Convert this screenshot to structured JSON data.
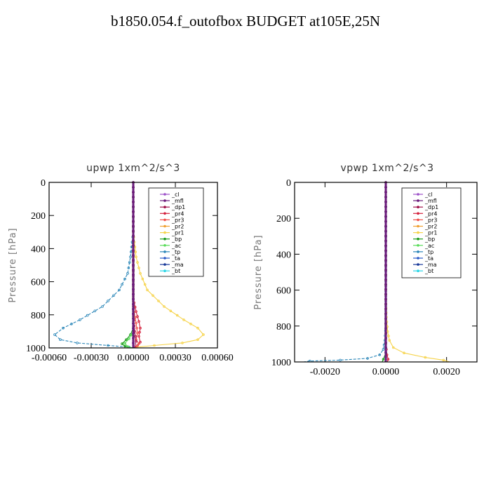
{
  "page": {
    "title": "b1850.054.f_outofbox  BUDGET at105E,25N"
  },
  "legend_items": [
    {
      "label": "_cl",
      "color": "#9c4fc9"
    },
    {
      "label": "_mfl",
      "color": "#6a1a7a"
    },
    {
      "label": "_dp1",
      "color": "#a0104a"
    },
    {
      "label": "_pr4",
      "color": "#d41f3c"
    },
    {
      "label": "_pr3",
      "color": "#f0504a"
    },
    {
      "label": "_pr2",
      "color": "#f0a030"
    },
    {
      "label": "_pr1",
      "color": "#f6d34a"
    },
    {
      "label": "_bp",
      "color": "#1a9a1a"
    },
    {
      "label": "_ac",
      "color": "#5adc5a"
    },
    {
      "label": "_tp",
      "color": "#2a86b8"
    },
    {
      "label": "_ta",
      "color": "#2a5ac8"
    },
    {
      "label": "_ma",
      "color": "#1a3a9a"
    },
    {
      "label": "_bt",
      "color": "#2ad6e6"
    }
  ],
  "chart_data": [
    {
      "type": "line",
      "title": "upwp   1xm^2/s^3",
      "ylabel": "Pressure [hPa]",
      "xlabel": "",
      "xlim": [
        -0.0006,
        0.0006
      ],
      "ylim": [
        1000,
        0
      ],
      "x_ticks": [
        -0.0006,
        -0.0003,
        0.0,
        0.0003,
        0.0006
      ],
      "x_tick_labels": [
        "-0.00060",
        "-0.00030",
        "0.00000",
        "0.00030",
        "0.00060"
      ],
      "y_ticks": [
        0,
        200,
        400,
        600,
        800,
        1000
      ],
      "y_tick_labels": [
        "0",
        "200",
        "400",
        "600",
        "800",
        "1000"
      ],
      "legend_position": "top-right",
      "series": [
        {
          "name": "_tp",
          "color": "#2a86b8",
          "points": [
            [
              0.0,
              0
            ],
            [
              0.0,
              300
            ],
            [
              -2e-05,
              450
            ],
            [
              -4e-05,
              550
            ],
            [
              -0.0001,
              650
            ],
            [
              -0.00022,
              750
            ],
            [
              -0.00038,
              830
            ],
            [
              -0.0005,
              880
            ],
            [
              -0.00056,
              920
            ],
            [
              -0.00052,
              950
            ],
            [
              -0.0004,
              970
            ],
            [
              -0.00018,
              985
            ],
            [
              -3e-05,
              995
            ],
            [
              0.0,
              1000
            ]
          ]
        },
        {
          "name": "_pr1",
          "color": "#f6d34a",
          "points": [
            [
              0.0,
              0
            ],
            [
              0.0,
              300
            ],
            [
              2e-05,
              450
            ],
            [
              5e-05,
              550
            ],
            [
              0.0001,
              650
            ],
            [
              0.00022,
              750
            ],
            [
              0.00036,
              830
            ],
            [
              0.00046,
              880
            ],
            [
              0.0005,
              920
            ],
            [
              0.00046,
              950
            ],
            [
              0.00035,
              970
            ],
            [
              0.00015,
              985
            ],
            [
              3e-05,
              995
            ],
            [
              0.0,
              1000
            ]
          ]
        },
        {
          "name": "_pr4",
          "color": "#d41f3c",
          "points": [
            [
              0.0,
              0
            ],
            [
              0.0,
              700
            ],
            [
              2e-05,
              780
            ],
            [
              4e-05,
              840
            ],
            [
              5e-05,
              880
            ],
            [
              4e-05,
              930
            ],
            [
              5e-05,
              965
            ],
            [
              3e-05,
              985
            ],
            [
              1e-05,
              1000
            ]
          ]
        },
        {
          "name": "_pr3",
          "color": "#f0504a",
          "points": [
            [
              0.0,
              0
            ],
            [
              0.0,
              750
            ],
            [
              2e-05,
              850
            ],
            [
              3e-05,
              910
            ],
            [
              2e-05,
              950
            ],
            [
              4e-05,
              975
            ],
            [
              2e-05,
              995
            ],
            [
              0.0,
              1000
            ]
          ]
        },
        {
          "name": "_bp",
          "color": "#1a9a1a",
          "points": [
            [
              0.0,
              0
            ],
            [
              0.0,
              880
            ],
            [
              -2e-05,
              920
            ],
            [
              -5e-05,
              950
            ],
            [
              -8e-05,
              975
            ],
            [
              -6e-05,
              990
            ],
            [
              -2e-05,
              1000
            ]
          ]
        },
        {
          "name": "_ac",
          "color": "#5adc5a",
          "points": [
            [
              0.0,
              0
            ],
            [
              0.0,
              900
            ],
            [
              -3e-05,
              945
            ],
            [
              -6e-05,
              972
            ],
            [
              -4e-05,
              992
            ],
            [
              0.0,
              1000
            ]
          ]
        },
        {
          "name": "_dp1",
          "color": "#a0104a",
          "points": [
            [
              0.0,
              0
            ],
            [
              0.0,
              800
            ],
            [
              1e-05,
              900
            ],
            [
              2e-05,
              960
            ],
            [
              1e-05,
              1000
            ]
          ]
        },
        {
          "name": "_cl",
          "color": "#9c4fc9",
          "points": [
            [
              0.0,
              0
            ],
            [
              0.0,
              1000
            ]
          ]
        },
        {
          "name": "_mfl",
          "color": "#6a1a7a",
          "points": [
            [
              0.0,
              0
            ],
            [
              0.0,
              1000
            ]
          ]
        }
      ]
    },
    {
      "type": "line",
      "title": "vpwp   1xm^2/s^3",
      "ylabel": "Pressure [hPa]",
      "xlabel": "",
      "xlim": [
        -0.003,
        0.003
      ],
      "ylim": [
        1000,
        0
      ],
      "x_ticks": [
        -0.002,
        0.0,
        0.002
      ],
      "x_tick_labels": [
        "-0.0020",
        "0.0000",
        "0.0020"
      ],
      "y_ticks": [
        0,
        200,
        400,
        600,
        800,
        1000
      ],
      "y_tick_labels": [
        "0",
        "200",
        "400",
        "600",
        "800",
        "1000"
      ],
      "legend_position": "top-right",
      "series": [
        {
          "name": "_tp",
          "color": "#2a86b8",
          "points": [
            [
              0.0,
              0
            ],
            [
              0.0,
              800
            ],
            [
              -3e-05,
              880
            ],
            [
              -8e-05,
              930
            ],
            [
              -0.0002,
              960
            ],
            [
              -0.0006,
              980
            ],
            [
              -0.0015,
              990
            ],
            [
              -0.0025,
              995
            ],
            [
              -0.0027,
              1000
            ]
          ]
        },
        {
          "name": "_pr1",
          "color": "#f6d34a",
          "points": [
            [
              0.0,
              0
            ],
            [
              0.0,
              650
            ],
            [
              2e-05,
              750
            ],
            [
              6e-05,
              830
            ],
            [
              0.00012,
              880
            ],
            [
              0.00025,
              920
            ],
            [
              0.0006,
              950
            ],
            [
              0.0013,
              975
            ],
            [
              0.0019,
              990
            ],
            [
              0.0021,
              1000
            ]
          ]
        },
        {
          "name": "_pr4",
          "color": "#d41f3c",
          "points": [
            [
              0.0,
              0
            ],
            [
              0.0,
              900
            ],
            [
              4e-05,
              960
            ],
            [
              8e-05,
              985
            ],
            [
              5e-05,
              1000
            ]
          ]
        },
        {
          "name": "_bp",
          "color": "#1a9a1a",
          "points": [
            [
              0.0,
              0
            ],
            [
              0.0,
              950
            ],
            [
              -8e-05,
              985
            ],
            [
              -0.00012,
              1000
            ]
          ]
        },
        {
          "name": "_cl",
          "color": "#9c4fc9",
          "points": [
            [
              0.0,
              0
            ],
            [
              0.0,
              1000
            ]
          ]
        },
        {
          "name": "_mfl",
          "color": "#6a1a7a",
          "points": [
            [
              0.0,
              0
            ],
            [
              0.0,
              1000
            ]
          ]
        }
      ]
    }
  ]
}
